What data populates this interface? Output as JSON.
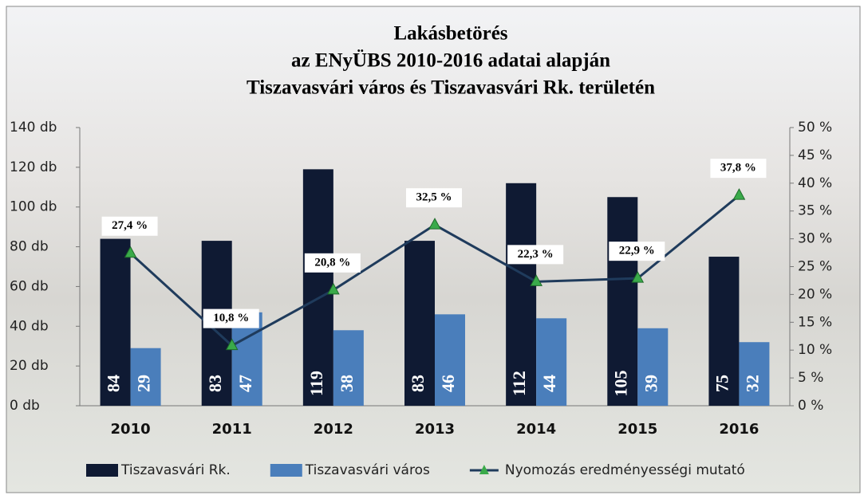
{
  "chart_data": {
    "type": "bar",
    "title": [
      "Lakásbetörés",
      "az ENyÜBS  2010-2016 adatai alapján",
      "Tiszavasvári város és Tiszavasvári Rk. területén"
    ],
    "categories": [
      "2010",
      "2011",
      "2012",
      "2013",
      "2014",
      "2015",
      "2016"
    ],
    "series": [
      {
        "name": "Tiszavasvári Rk.",
        "color": "#0f1a33",
        "values": [
          84,
          83,
          119,
          83,
          112,
          105,
          75
        ]
      },
      {
        "name": "Tiszavasvári város",
        "color": "#4a7ebb",
        "values": [
          29,
          47,
          38,
          46,
          44,
          39,
          32
        ]
      },
      {
        "name": "Nyomozás eredményességi mutató",
        "type": "line",
        "axis": "y2",
        "color": "#1f3b5c",
        "marker_color": "#3aaa4a",
        "values": [
          27.4,
          10.8,
          20.8,
          32.5,
          22.3,
          22.9,
          37.8
        ],
        "value_labels": [
          "27,4 %",
          "10,8 %",
          "20,8 %",
          "32,5 %",
          "22,3 %",
          "22,9 %",
          "37,8 %"
        ]
      }
    ],
    "ylim": [
      0,
      140
    ],
    "yticks": [
      {
        "value": 0,
        "label": "0 db"
      },
      {
        "value": 20,
        "label": "20 db"
      },
      {
        "value": 40,
        "label": "40 db"
      },
      {
        "value": 60,
        "label": "60 db"
      },
      {
        "value": 80,
        "label": "80 db"
      },
      {
        "value": 100,
        "label": "100 db"
      },
      {
        "value": 120,
        "label": "120 db"
      },
      {
        "value": 140,
        "label": "140 db"
      }
    ],
    "y2lim": [
      0,
      50
    ],
    "y2ticks": [
      {
        "value": 0,
        "label": "0 %"
      },
      {
        "value": 5,
        "label": "5 %"
      },
      {
        "value": 10,
        "label": "10 %"
      },
      {
        "value": 15,
        "label": "15 %"
      },
      {
        "value": 20,
        "label": "20 %"
      },
      {
        "value": 25,
        "label": "25 %"
      },
      {
        "value": 30,
        "label": "30 %"
      },
      {
        "value": 35,
        "label": "35 %"
      },
      {
        "value": 40,
        "label": "40 %"
      },
      {
        "value": 45,
        "label": "45 %"
      },
      {
        "value": 50,
        "label": "50 %"
      }
    ],
    "legend": "bottom"
  }
}
